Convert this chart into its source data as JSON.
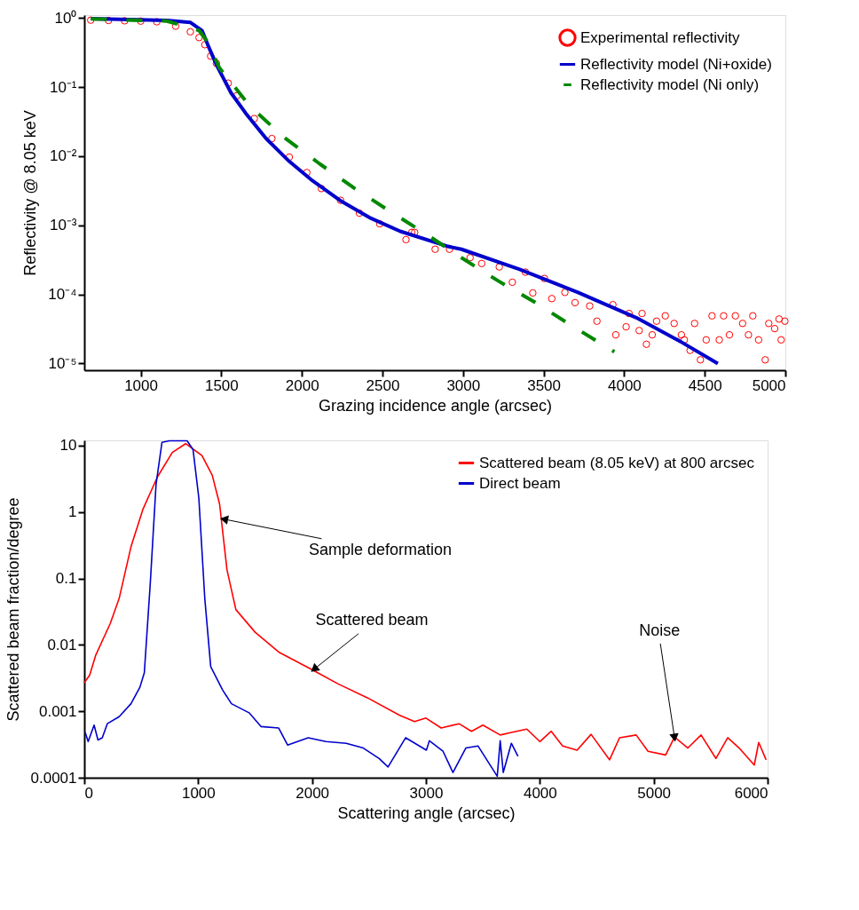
{
  "chart_data": [
    {
      "type": "line",
      "xlabel": "Grazing incidence angle (arcsec)",
      "ylabel": "Reflectivity @ 8.05 keV",
      "log": "y",
      "grid": false,
      "legend": "top right",
      "xlim": [
        650,
        5000
      ],
      "xticks": [
        1000,
        1500,
        2000,
        2500,
        3000,
        3500,
        4000,
        4500,
        5000
      ],
      "ylim": [
        8e-06,
        1.1
      ],
      "yticks": [
        {
          "value": 1,
          "label": "10⁰"
        },
        {
          "value": 0.1,
          "label": "10⁻¹"
        },
        {
          "value": 0.01,
          "label": "10⁻²"
        },
        {
          "value": 0.001,
          "label": "10⁻³"
        },
        {
          "value": 0.0001,
          "label": "10⁻⁴"
        },
        {
          "value": 1e-05,
          "label": "10⁻⁵"
        }
      ],
      "series": [
        {
          "name": "Experimental reflectivity",
          "type": "scatter",
          "marker": "circle",
          "color": "#ff0000",
          "x": [
            690,
            800,
            900,
            1000,
            1100,
            1217,
            1308,
            1362,
            1398,
            1434,
            1470,
            1543,
            1597,
            1705,
            1814,
            1922,
            2031,
            2121,
            2240,
            2357,
            2483,
            2646,
            2682,
            2700,
            2827,
            2916,
            3044,
            3116,
            3225,
            3306,
            3387,
            3433,
            3505,
            3551,
            3632,
            3695,
            3786,
            3831,
            3930,
            3948,
            4012,
            4030,
            4093,
            4111,
            4138,
            4174,
            4201,
            4255,
            4310,
            4355,
            4373,
            4409,
            4437,
            4473,
            4509,
            4545,
            4590,
            4617,
            4653,
            4690,
            4735,
            4771,
            4798,
            4834,
            4875,
            4897,
            4934,
            4961,
            4974,
            4997
          ],
          "values": [
            0.93,
            0.92,
            0.91,
            0.9,
            0.88,
            0.76,
            0.63,
            0.52,
            0.41,
            0.28,
            0.22,
            0.114,
            0.075,
            0.035,
            0.018,
            0.0097,
            0.0058,
            0.0034,
            0.0023,
            0.0015,
            0.00105,
            0.00062,
            0.00079,
            0.00079,
            0.00045,
            0.00045,
            0.00034,
            0.00028,
            0.00025,
            0.00015,
            0.00021,
            0.000105,
            0.00017,
            8.7e-05,
            0.000107,
            7.6e-05,
            6.8e-05,
            4.1e-05,
            7.1e-05,
            2.6e-05,
            3.4e-05,
            5.3e-05,
            3e-05,
            5.3e-05,
            1.9e-05,
            2.6e-05,
            4.1e-05,
            4.9e-05,
            3.8e-05,
            2.6e-05,
            2.2e-05,
            1.55e-05,
            3.8e-05,
            1.13e-05,
            2.2e-05,
            4.9e-05,
            2.2e-05,
            4.9e-05,
            2.6e-05,
            4.9e-05,
            3.8e-05,
            2.6e-05,
            4.9e-05,
            2.2e-05,
            1.13e-05,
            3.8e-05,
            3.2e-05,
            4.4e-05,
            2.2e-05,
            4.1e-05
          ]
        },
        {
          "name": "Reflectivity model (Ni+oxide)",
          "line_style": "solid",
          "color": "#0000cc",
          "x": [
            691,
            1163,
            1309,
            1380,
            1416,
            1470,
            1561,
            1651,
            1778,
            1922,
            2067,
            2248,
            2429,
            2610,
            2899,
            2990,
            3351,
            3713,
            4075,
            4346,
            4581
          ],
          "values": [
            0.98,
            0.92,
            0.86,
            0.66,
            0.41,
            0.21,
            0.082,
            0.042,
            0.018,
            0.0084,
            0.0044,
            0.0022,
            0.00126,
            0.00082,
            0.0005,
            0.00045,
            0.00023,
            0.000107,
            4.6e-05,
            2.1e-05,
            1e-05
          ]
        },
        {
          "name": "Reflectivity model (Ni only)",
          "line_style": "dashed",
          "color": "#008800",
          "x": [
            691,
            1163,
            1362,
            1416,
            1488,
            1678,
            1886,
            2112,
            2329,
            2556,
            2781,
            2990,
            3216,
            3442,
            3668,
            3939
          ],
          "values": [
            0.97,
            0.9,
            0.66,
            0.45,
            0.19,
            0.053,
            0.019,
            0.0077,
            0.0034,
            0.00154,
            0.00072,
            0.00034,
            0.000158,
            7.8e-05,
            3.6e-05,
            1.48e-05
          ]
        }
      ]
    },
    {
      "type": "line",
      "xlabel": "Scattering angle (arcsec)",
      "ylabel": "Scattered beam fraction/degree",
      "log": "y",
      "grid": false,
      "legend": "top right",
      "marker": "none",
      "xlim": [
        0,
        6000
      ],
      "xticks": [
        0,
        1000,
        2000,
        3000,
        4000,
        5000,
        6000
      ],
      "ylim": [
        0.0001,
        12
      ],
      "yticks": [
        10,
        1,
        0.1,
        0.01,
        0.001,
        0.0001
      ],
      "annotations": [
        {
          "text": "Sample deformation",
          "x": 1227,
          "y": 0.78
        },
        {
          "text": "Scattered beam",
          "x": 2018,
          "y": 0.0043
        },
        {
          "text": "Noise",
          "x": 5183,
          "y": 0.0004
        }
      ],
      "series": [
        {
          "name": "Scattered beam (8.05 keV) at 800 arcsec",
          "color": "#ff0000",
          "x": [
            0,
            47,
            99,
            228,
            306,
            410,
            514,
            643,
            773,
            890,
            1033,
            1123,
            1188,
            1253,
            1331,
            1500,
            1707,
            1992,
            2226,
            2485,
            2770,
            2900,
            3000,
            3134,
            3290,
            3400,
            3500,
            3652,
            3750,
            3886,
            4000,
            4100,
            4200,
            4327,
            4450,
            4612,
            4700,
            4846,
            4950,
            5105,
            5183,
            5300,
            5416,
            5546,
            5650,
            5750,
            5883,
            5922,
            5987
          ],
          "values": [
            0.0027,
            0.0035,
            0.0069,
            0.021,
            0.05,
            0.3,
            1.09,
            3.4,
            7.9,
            10.7,
            7.1,
            3.6,
            1.32,
            0.135,
            0.034,
            0.0155,
            0.0078,
            0.0043,
            0.0026,
            0.0016,
            0.00087,
            0.0007,
            0.00079,
            0.00056,
            0.00065,
            0.0005,
            0.00062,
            0.00044,
            0.00048,
            0.00054,
            0.00035,
            0.0005,
            0.0003,
            0.00026,
            0.00045,
            0.000186,
            0.0004,
            0.00044,
            0.00025,
            0.00022,
            0.00041,
            0.00028,
            0.00044,
            0.000195,
            0.0004,
            0.00028,
            0.000155,
            0.00034,
            0.000186
          ]
        },
        {
          "name": "Direct beam",
          "color": "#0000cc",
          "x": [
            8,
            34,
            86,
            120,
            158,
            202,
            306,
            410,
            488,
            527,
            579,
            630,
            682,
            747,
            903,
            955,
            1006,
            1058,
            1110,
            1214,
            1292,
            1447,
            1551,
            1707,
            1785,
            1966,
            2121,
            2300,
            2450,
            2589,
            2667,
            2822,
            3004,
            3030,
            3150,
            3237,
            3350,
            3458,
            3626,
            3652,
            3679,
            3750,
            3808
          ],
          "values": [
            0.00048,
            0.00035,
            0.00062,
            0.00037,
            0.0004,
            0.00065,
            0.00083,
            0.0013,
            0.0023,
            0.0038,
            0.083,
            2.6,
            11.2,
            11.8,
            11.8,
            8.7,
            1.6,
            0.05,
            0.0047,
            0.0021,
            0.0013,
            0.00095,
            0.00059,
            0.00056,
            0.00031,
            0.0004,
            0.00035,
            0.00033,
            0.00028,
            0.000195,
            0.000145,
            0.0004,
            0.00026,
            0.00036,
            0.00025,
            0.00012,
            0.00028,
            0.0003,
            0.000105,
            0.00036,
            0.00012,
            0.00033,
            0.00021
          ]
        }
      ]
    }
  ]
}
